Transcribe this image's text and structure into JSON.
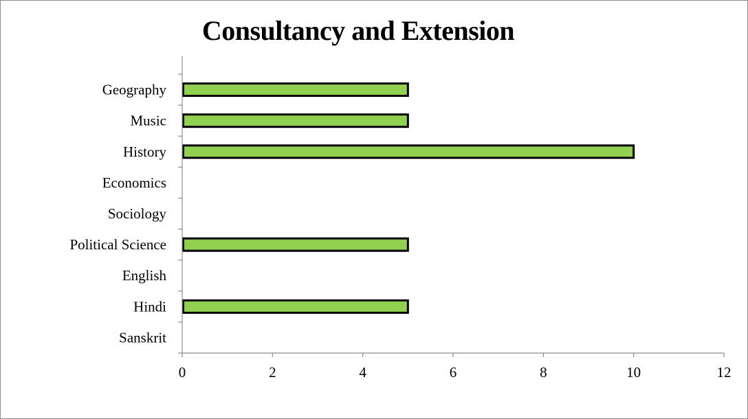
{
  "chart_data": {
    "type": "bar",
    "orientation": "horizontal",
    "title": "Consultancy and Extension",
    "xlabel": "",
    "ylabel": "",
    "categories": [
      "Sanskrit",
      "Hindi",
      "English",
      "Political Science",
      "Sociology",
      "Economics",
      "History",
      "Music",
      "Geography"
    ],
    "values": [
      0,
      5,
      0,
      5,
      0,
      0,
      10,
      5,
      5
    ],
    "xlim": [
      0,
      12
    ],
    "xticks": [
      0,
      2,
      4,
      6,
      8,
      10,
      12
    ],
    "grid": false,
    "legend": "none",
    "bar_color": "#92d050",
    "bar_edge_color": "#000000"
  }
}
